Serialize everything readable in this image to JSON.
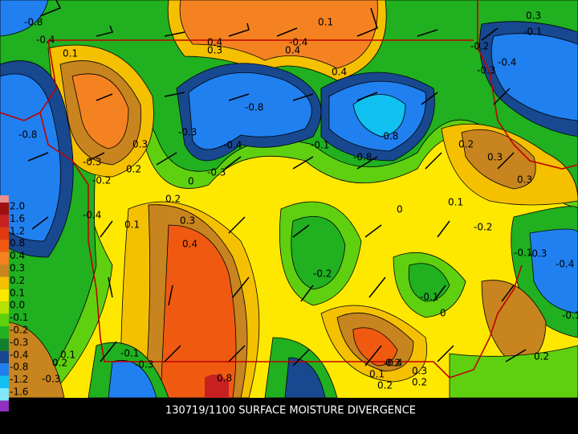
{
  "title": "130719/1100 SURFACE MOISTURE DIVERGENCE",
  "legend": [
    {
      "label": "2.0",
      "color": "#a01010"
    },
    {
      "label": "1.6",
      "color": "#c82020"
    },
    {
      "label": "1.2",
      "color": "#e03a10"
    },
    {
      "label": "0.8",
      "color": "#f05a10"
    },
    {
      "label": "0.4",
      "color": "#f58220"
    },
    {
      "label": "0.3",
      "color": "#c8841e"
    },
    {
      "label": "0.2",
      "color": "#f5c000"
    },
    {
      "label": "0.1",
      "color": "#ffe800"
    },
    {
      "label": "0.0",
      "color": "#b8e000"
    },
    {
      "label": "-0.1",
      "color": "#5fd010"
    },
    {
      "label": "-0.2",
      "color": "#20b020"
    },
    {
      "label": "-0.3",
      "color": "#108030"
    },
    {
      "label": "-0.4",
      "color": "#184890"
    },
    {
      "label": "-0.8",
      "color": "#2080f0"
    },
    {
      "label": "-1.2",
      "color": "#10c0f0"
    },
    {
      "label": "-1.6",
      "color": "#80e8f8"
    }
  ],
  "labels": [
    "-0.8",
    "-0.4",
    "0.1",
    "-0.8",
    "0.3",
    "0.2",
    "-0.3",
    "-0.2",
    "-0.4",
    "0.1",
    "0.4",
    "0.3",
    "-0.4",
    "-0.8",
    "-0.3",
    "0.4",
    "0.4",
    "-0.8",
    "-0.1",
    "-0.4",
    "-0.8",
    "-0.3",
    "0",
    "0.2",
    "0.3",
    "0.4",
    "0.3",
    "-0.2",
    "0",
    "0.1",
    "-0.2",
    "0.2",
    "0.3",
    "0.3",
    "-0.1",
    "-0.3",
    "-0.4",
    "-0.1",
    "0",
    "-0.1",
    "-0.4",
    "0.1",
    "0.2",
    "0.3",
    "0.2",
    "0.8",
    "0.1",
    "-0.2",
    "-0.3",
    "0.1",
    "0.2",
    "-0.3",
    "-0.3",
    "0.2",
    "-0.1",
    "-0.4",
    "0.2",
    "-0.1"
  ]
}
